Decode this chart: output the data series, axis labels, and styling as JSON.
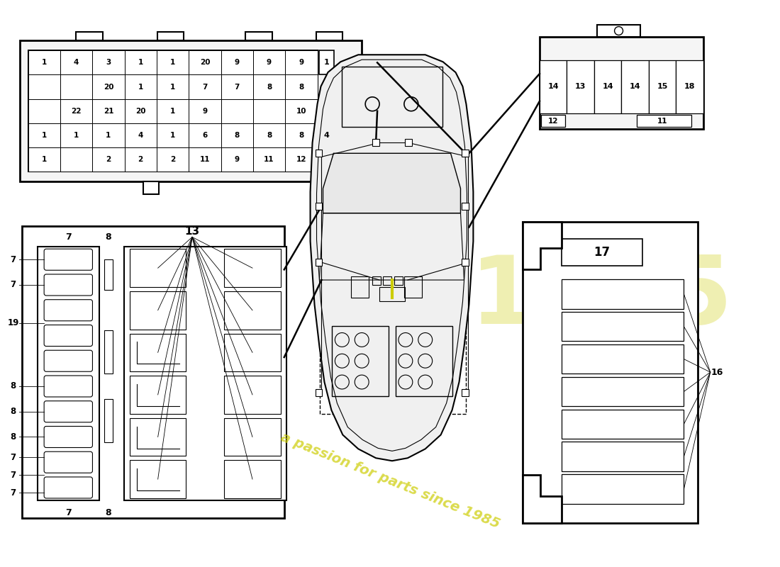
{
  "bg_color": "#ffffff",
  "watermark_color": "#cccc00",
  "watermark_text": "a passion for parts since 1985",
  "top_fuse_rows": [
    [
      "1",
      "4",
      "3",
      "1",
      "1",
      "20",
      "9",
      "9",
      "9"
    ],
    [
      "",
      "",
      "20",
      "1",
      "1",
      "7",
      "7",
      "8",
      "8"
    ],
    [
      "",
      "22",
      "21",
      "20",
      "1",
      "9",
      "",
      "",
      "10"
    ],
    [
      "1",
      "1",
      "1",
      "4",
      "1",
      "6",
      "8",
      "8",
      "8"
    ],
    [
      "1",
      "",
      "2",
      "2",
      "2",
      "11",
      "9",
      "11",
      "12"
    ]
  ],
  "top_right_cells": [
    "14",
    "13",
    "14",
    "14",
    "15",
    "18"
  ],
  "top_right_bot_left": "12",
  "top_right_bot_right": "11"
}
